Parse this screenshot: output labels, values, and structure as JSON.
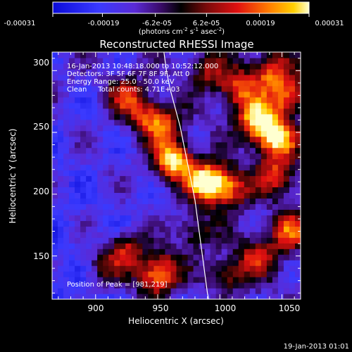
{
  "chart_data": {
    "type": "heatmap",
    "title": "Reconstructed RHESSI Image",
    "xlabel": "Heliocentric X (arcsec)",
    "ylabel": "Heliocentric Y (arcsec)",
    "xlim": [
      865,
      1065
    ],
    "ylim": [
      115,
      315
    ],
    "x_ticks": [
      900,
      950,
      1000,
      1050
    ],
    "y_ticks": [
      150,
      200,
      250,
      300
    ],
    "colorbar": {
      "ticks": [
        "-0.00031",
        "-0.00019",
        "-6.2e-05",
        "6.2e-05",
        "0.00019",
        "0.00031"
      ],
      "tick_values": [
        -0.00031,
        -0.00019,
        -6.2e-05,
        6.2e-05,
        0.00019,
        0.00031
      ],
      "range": [
        -0.00031,
        0.00031
      ],
      "units_line": [
        "(photons cm",
        "-2",
        " s",
        "-1",
        " asec",
        "-2",
        ")"
      ]
    },
    "annotations": [
      "16-Jan-2013 10:48:18.000 to 10:52:12.000",
      "Detectors: 3F 5F 6F 7F 8F 9F, Att 0",
      "Energy Range: 25.0 - 50.0 keV",
      "Clean     Total counts: 4.71E+03"
    ],
    "peak_label": "Position of Peak = [981,219]",
    "peak": [
      981,
      219
    ],
    "sources": [
      {
        "x": 990,
        "y": 210,
        "amp": 1.0
      },
      {
        "x": 962,
        "y": 227,
        "amp": 0.92
      },
      {
        "x": 1008,
        "y": 205,
        "amp": 0.6
      },
      {
        "x": 1045,
        "y": 245,
        "amp": 0.85
      },
      {
        "x": 1030,
        "y": 260,
        "amp": 0.8
      },
      {
        "x": 1055,
        "y": 280,
        "amp": 0.65
      },
      {
        "x": 1015,
        "y": 285,
        "amp": 0.6
      },
      {
        "x": 1040,
        "y": 300,
        "amp": 0.55
      },
      {
        "x": 955,
        "y": 255,
        "amp": 0.55
      },
      {
        "x": 925,
        "y": 280,
        "amp": 0.45
      },
      {
        "x": 940,
        "y": 265,
        "amp": 0.45
      },
      {
        "x": 1045,
        "y": 215,
        "amp": 0.5
      },
      {
        "x": 1055,
        "y": 170,
        "amp": 0.55
      },
      {
        "x": 1030,
        "y": 150,
        "amp": 0.5
      },
      {
        "x": 1005,
        "y": 135,
        "amp": 0.45
      },
      {
        "x": 955,
        "y": 140,
        "amp": 0.55
      },
      {
        "x": 945,
        "y": 130,
        "amp": 0.5
      },
      {
        "x": 925,
        "y": 155,
        "amp": 0.55
      },
      {
        "x": 905,
        "y": 140,
        "amp": 0.35
      },
      {
        "x": 980,
        "y": 170,
        "amp": 0.4
      },
      {
        "x": 990,
        "y": 300,
        "amp": 0.4
      }
    ],
    "limb_curve": [
      [
        955,
        315
      ],
      [
        957,
        300
      ],
      [
        960,
        285
      ],
      [
        964,
        270
      ],
      [
        968,
        255
      ],
      [
        971,
        240
      ],
      [
        974,
        225
      ],
      [
        977,
        210
      ],
      [
        980,
        195
      ],
      [
        982,
        180
      ],
      [
        984,
        165
      ],
      [
        986,
        150
      ],
      [
        988,
        135
      ],
      [
        990,
        120
      ],
      [
        991,
        115
      ]
    ]
  },
  "footer": {
    "date": "19-Jan-2013 01:01"
  }
}
